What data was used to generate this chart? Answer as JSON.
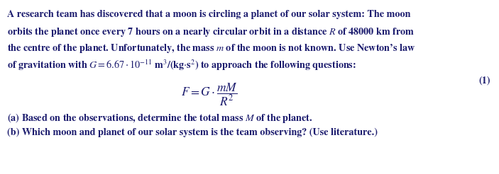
{
  "background_color": "#ffffff",
  "text_color": "#1c1c6e",
  "fig_width": 7.03,
  "fig_height": 2.46,
  "dpi": 100,
  "fontsize_main": 10.2,
  "fontsize_formula": 12.5,
  "lines": [
    "A research team has discovered that a moon is circling a planet of our solar system: The moon",
    "orbits the planet once every 7 hours on a nearly circular orbit in a distance $R$ of 48000 km from",
    "the centre of the planet. Unfortunately, the mass $m$ of the moon is not known. Use Newton’s law",
    "of gravitation with $G = 6.67 \\cdot 10^{-11}$ m$^3$/(kg$\\cdot$s$^2$) to approach the following questions:"
  ],
  "formula": "$F = G \\cdot \\dfrac{mM}{R^2}$",
  "formula_number": "(1)",
  "question_a": "(a) Based on the observations, determine the total mass $M$ of the planet.",
  "question_b": "(b) Which moon and planet of our solar system is the team observing? (Use literature.)"
}
